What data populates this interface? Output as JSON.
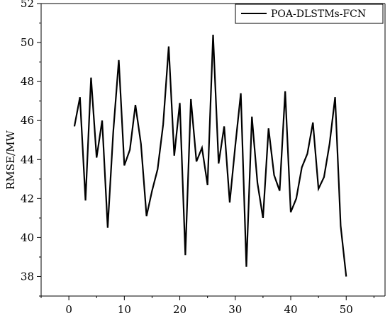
{
  "chart_data": {
    "type": "line",
    "title": "",
    "xlabel": "",
    "ylabel": "RMSE/MW",
    "xlim": [
      -5,
      57
    ],
    "ylim": [
      37,
      52
    ],
    "x_ticks": [
      0,
      10,
      20,
      30,
      40,
      50
    ],
    "y_ticks": [
      38,
      40,
      42,
      44,
      46,
      48,
      50,
      52
    ],
    "grid": false,
    "legend_position": "top-right",
    "series": [
      {
        "name": "POA-DLSTMs-FCN",
        "color": "#000000",
        "x": [
          1,
          2,
          3,
          4,
          5,
          6,
          7,
          8,
          9,
          10,
          11,
          12,
          13,
          14,
          15,
          16,
          17,
          18,
          19,
          20,
          21,
          22,
          23,
          24,
          25,
          26,
          27,
          28,
          29,
          30,
          31,
          32,
          33,
          34,
          35,
          36,
          37,
          38,
          39,
          40,
          41,
          42,
          43,
          44,
          45,
          46,
          47,
          48,
          49,
          50
        ],
        "y": [
          45.7,
          47.2,
          41.9,
          48.2,
          44.1,
          46.0,
          40.5,
          45.4,
          49.1,
          43.7,
          44.5,
          46.8,
          44.8,
          41.1,
          42.4,
          43.5,
          45.8,
          49.8,
          44.2,
          46.9,
          39.1,
          47.1,
          43.9,
          44.6,
          42.7,
          50.4,
          43.8,
          45.7,
          41.8,
          44.7,
          47.4,
          38.5,
          46.2,
          42.8,
          41.0,
          45.6,
          43.2,
          42.4,
          47.5,
          41.3,
          42.0,
          43.6,
          44.3,
          45.9,
          42.5,
          43.1,
          44.8,
          47.2,
          40.6,
          38.0
        ]
      }
    ]
  }
}
